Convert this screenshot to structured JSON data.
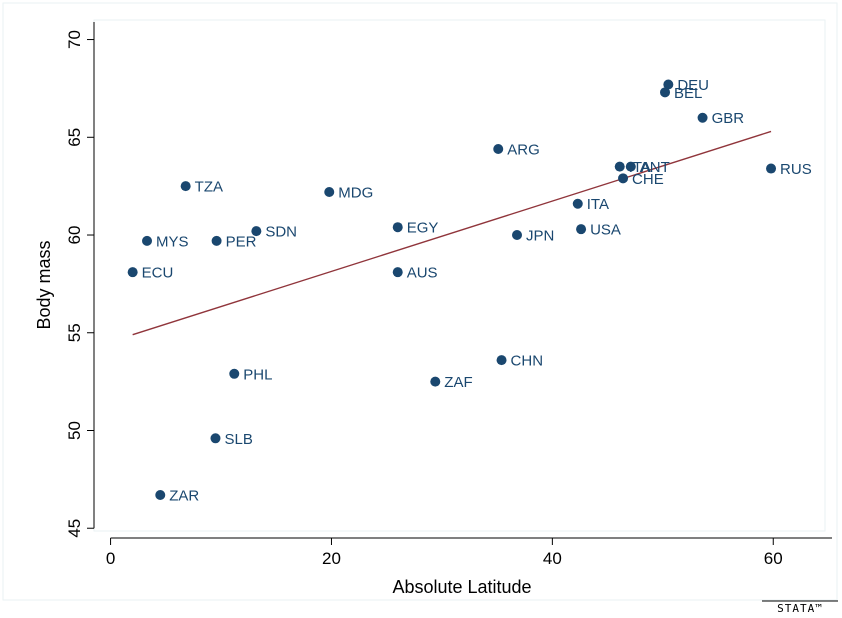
{
  "chart_data": {
    "type": "scatter",
    "title": "",
    "xlabel": "Absolute Latitude",
    "ylabel": "Body mass",
    "xlim": [
      -1.5,
      65.5
    ],
    "ylim": [
      44.5,
      71
    ],
    "xticks": [
      "0",
      "20",
      "40",
      "60"
    ],
    "yticks": [
      "45",
      "50",
      "55",
      "60",
      "65",
      "70"
    ],
    "grid": false,
    "legend": "none",
    "colors": {
      "marker": "#1a476f",
      "fit_line": "#90353b",
      "background": "#ffffff",
      "outer_background": "#eaf2f3"
    },
    "points": [
      {
        "label": "DEU",
        "x": 50.5,
        "y": 67.7
      },
      {
        "label": "BEL",
        "x": 50.2,
        "y": 67.3
      },
      {
        "label": "GBR",
        "x": 53.6,
        "y": 66.0
      },
      {
        "label": "ARG",
        "x": 35.1,
        "y": 64.4
      },
      {
        "label": "ITA",
        "x": 46.1,
        "y": 63.5
      },
      {
        "label": "ANT",
        "x": 47.1,
        "y": 63.5
      },
      {
        "label": "RUS",
        "x": 59.8,
        "y": 63.4
      },
      {
        "label": "CHE",
        "x": 46.4,
        "y": 62.9
      },
      {
        "label": "TZA",
        "x": 6.8,
        "y": 62.5
      },
      {
        "label": "MDG",
        "x": 19.8,
        "y": 62.2
      },
      {
        "label": "ITA",
        "x": 42.3,
        "y": 61.6
      },
      {
        "label": "EGY",
        "x": 26.0,
        "y": 60.4
      },
      {
        "label": "USA",
        "x": 42.6,
        "y": 60.3
      },
      {
        "label": "SDN",
        "x": 13.2,
        "y": 60.2
      },
      {
        "label": "JPN",
        "x": 36.8,
        "y": 60.0
      },
      {
        "label": "MYS",
        "x": 3.3,
        "y": 59.7
      },
      {
        "label": "PER",
        "x": 9.6,
        "y": 59.7
      },
      {
        "label": "ECU",
        "x": 2.0,
        "y": 58.1
      },
      {
        "label": "AUS",
        "x": 26.0,
        "y": 58.1
      },
      {
        "label": "CHN",
        "x": 35.4,
        "y": 53.6
      },
      {
        "label": "PHL",
        "x": 11.2,
        "y": 52.9
      },
      {
        "label": "ZAF",
        "x": 29.4,
        "y": 52.5
      },
      {
        "label": "SLB",
        "x": 9.5,
        "y": 49.6
      },
      {
        "label": "ZAR",
        "x": 4.5,
        "y": 46.7
      }
    ],
    "fit_line": {
      "x1": 2.0,
      "y1": 54.9,
      "x2": 59.8,
      "y2": 65.3
    }
  },
  "watermark": {
    "text": "STATA™"
  }
}
